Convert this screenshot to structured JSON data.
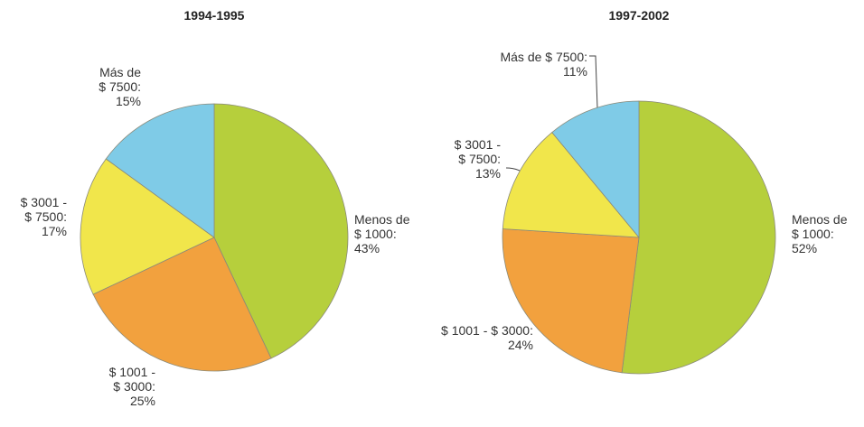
{
  "chart_data": [
    {
      "type": "pie",
      "title": "1994-1995",
      "categories": [
        "Menos de\n$ 1000:",
        "$ 1001 -\n$ 3000:",
        "$ 3001 -\n$ 7500:",
        "Más de\n$ 7500:"
      ],
      "values": [
        43,
        25,
        17,
        15
      ],
      "value_labels": [
        "43%",
        "25%",
        "17%",
        "15%"
      ],
      "colors": [
        "#b6cf3c",
        "#f2a13e",
        "#f1e64b",
        "#7fcbe7"
      ]
    },
    {
      "type": "pie",
      "title": "1997-2002",
      "categories": [
        "Menos de\n$ 1000:",
        "$ 1001 - $ 3000:",
        "$ 3001 -\n$ 7500:",
        "Más de $ 7500:"
      ],
      "values": [
        52,
        24,
        13,
        11
      ],
      "value_labels": [
        "52%",
        "24%",
        "13%",
        "11%"
      ],
      "colors": [
        "#b6cf3c",
        "#f2a13e",
        "#f1e64b",
        "#7fcbe7"
      ]
    }
  ]
}
